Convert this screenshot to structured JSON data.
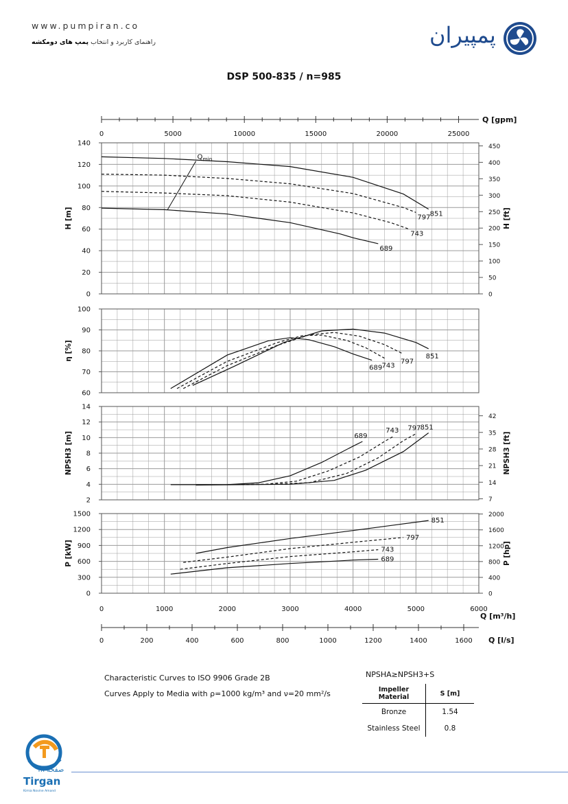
{
  "header": {
    "website": "www.pumpiran.co",
    "tagline_pre": "راهنمای کاربرد و انتخاب ",
    "tagline_bold": "پمپ های دومکشه",
    "brand": "پمپیران"
  },
  "title": "DSP 500-835 / n=985",
  "footer": {
    "page_label": "صفحه ۱۸",
    "company": "Tirgan",
    "company_sub": "Kimia Novine Amand"
  },
  "notes": {
    "line1": "Characteristic Curves to ISO 9906 Grade 2B",
    "line2": "Curves Apply to Media with  ρ=1000 kg/m³ and ν=20 mm²/s"
  },
  "npsh_rule": "NPSHA≥NPSH3+S",
  "impeller_table": {
    "headers": [
      "Impeller Material",
      "S [m]"
    ],
    "rows": [
      [
        "Bronze",
        "1.54"
      ],
      [
        "Stainless Steel",
        "0.8"
      ]
    ]
  },
  "colors": {
    "brand": "#1f4b8e",
    "grid": "#9a9a9a",
    "curve": "#111111",
    "footer_line": "#6b8fd0",
    "tirgan_orange": "#f39a1e",
    "tirgan_blue": "#1a6fb4"
  },
  "chart_data": {
    "type": "line",
    "title": "DSP 500-835 / n=985",
    "impeller_diameters": [
      "689",
      "743",
      "797",
      "851"
    ],
    "x_axes": {
      "gpm": {
        "label": "Q [gpm]",
        "ticks": [
          0,
          5000,
          10000,
          15000,
          20000,
          25000
        ]
      },
      "m3h": {
        "label": "Q [m³/h]",
        "ticks": [
          0,
          1000,
          2000,
          3000,
          4000,
          5000,
          6000
        ],
        "xlim": [
          0,
          6000
        ]
      },
      "ls": {
        "label": "Q [l/s]",
        "ticks": [
          0,
          200,
          400,
          600,
          800,
          1000,
          1200,
          1400,
          1600
        ]
      }
    },
    "panels": [
      {
        "id": "head",
        "ylabel": "H [m]",
        "ylim": [
          0,
          140
        ],
        "yticks": [
          0,
          20,
          40,
          60,
          80,
          100,
          120,
          140
        ],
        "y2label": "H [ft]",
        "y2ticks": [
          0,
          50,
          100,
          150,
          200,
          250,
          300,
          350,
          400,
          450
        ],
        "annotation": "Qmin",
        "qmin_line": [
          [
            1050,
            78
          ],
          [
            1500,
            123
          ]
        ],
        "series": [
          {
            "name": "689",
            "dash": false,
            "points": [
              [
                0,
                79.5
              ],
              [
                1000,
                78
              ],
              [
                2000,
                74
              ],
              [
                3000,
                66
              ],
              [
                3800,
                55.5
              ],
              [
                4000,
                52
              ],
              [
                4400,
                46.5
              ]
            ]
          },
          {
            "name": "743",
            "dash": true,
            "points": [
              [
                0,
                95
              ],
              [
                1000,
                93.5
              ],
              [
                2000,
                91
              ],
              [
                3000,
                85
              ],
              [
                4000,
                75
              ],
              [
                4600,
                66
              ],
              [
                4890,
                60
              ]
            ]
          },
          {
            "name": "797",
            "dash": true,
            "points": [
              [
                0,
                111
              ],
              [
                1000,
                110
              ],
              [
                2000,
                107
              ],
              [
                3000,
                102
              ],
              [
                4000,
                93
              ],
              [
                4800,
                80
              ],
              [
                5000,
                75.5
              ]
            ]
          },
          {
            "name": "851",
            "dash": false,
            "points": [
              [
                0,
                127
              ],
              [
                1000,
                125.5
              ],
              [
                2000,
                122.5
              ],
              [
                3000,
                118
              ],
              [
                4000,
                108
              ],
              [
                4800,
                92.5
              ],
              [
                5200,
                78.5
              ]
            ]
          }
        ]
      },
      {
        "id": "efficiency",
        "ylabel": "η [%]",
        "ylim": [
          60,
          100
        ],
        "yticks": [
          60,
          70,
          80,
          90,
          100
        ],
        "series": [
          {
            "name": "689",
            "dash": false,
            "points": [
              [
                1100,
                62
              ],
              [
                2000,
                78
              ],
              [
                2650,
                84.8
              ],
              [
                3000,
                86.3
              ],
              [
                3300,
                85.3
              ],
              [
                3700,
                82
              ],
              [
                4000,
                78.5
              ],
              [
                4300,
                75.5
              ]
            ]
          },
          {
            "name": "743",
            "dash": true,
            "points": [
              [
                1200,
                62
              ],
              [
                2000,
                75
              ],
              [
                2800,
                84
              ],
              [
                3200,
                87.3
              ],
              [
                3500,
                87.5
              ],
              [
                3900,
                85
              ],
              [
                4200,
                81.5
              ],
              [
                4500,
                76.5
              ]
            ]
          },
          {
            "name": "797",
            "dash": true,
            "points": [
              [
                1300,
                62
              ],
              [
                2000,
                73
              ],
              [
                2800,
                82.7
              ],
              [
                3300,
                87.6
              ],
              [
                3700,
                88.8
              ],
              [
                4100,
                87
              ],
              [
                4500,
                83
              ],
              [
                4800,
                78.5
              ]
            ]
          },
          {
            "name": "851",
            "dash": false,
            "points": [
              [
                1450,
                63.5
              ],
              [
                2100,
                72.5
              ],
              [
                2900,
                84
              ],
              [
                3500,
                89.5
              ],
              [
                4000,
                90.4
              ],
              [
                4500,
                88.5
              ],
              [
                5000,
                84
              ],
              [
                5200,
                81
              ]
            ]
          }
        ]
      },
      {
        "id": "npsh",
        "ylabel": "NPSH3 [m]",
        "ylim": [
          2,
          14
        ],
        "yticks": [
          2,
          4,
          6,
          8,
          10,
          12,
          14
        ],
        "y2label": "NPSH3 [ft]",
        "y2ticks": [
          7,
          14,
          21,
          28,
          35,
          42
        ],
        "series": [
          {
            "name": "689",
            "dash": false,
            "points": [
              [
                1100,
                3.95
              ],
              [
                2000,
                3.95
              ],
              [
                2500,
                4.2
              ],
              [
                3000,
                5.1
              ],
              [
                3500,
                6.8
              ],
              [
                4000,
                8.9
              ],
              [
                4150,
                9.5
              ]
            ]
          },
          {
            "name": "743",
            "dash": true,
            "points": [
              [
                2000,
                3.95
              ],
              [
                2600,
                4.0
              ],
              [
                3100,
                4.4
              ],
              [
                3600,
                5.7
              ],
              [
                4100,
                7.5
              ],
              [
                4500,
                9.5
              ],
              [
                4650,
                10.2
              ]
            ]
          },
          {
            "name": "797",
            "dash": true,
            "points": [
              [
                2000,
                3.95
              ],
              [
                2700,
                4.0
              ],
              [
                3300,
                4.2
              ],
              [
                3900,
                5.4
              ],
              [
                4400,
                7.4
              ],
              [
                4800,
                9.6
              ],
              [
                5000,
                10.5
              ]
            ]
          },
          {
            "name": "851",
            "dash": false,
            "points": [
              [
                1500,
                3.9
              ],
              [
                2200,
                3.95
              ],
              [
                3000,
                4.0
              ],
              [
                3700,
                4.5
              ],
              [
                4200,
                5.8
              ],
              [
                4800,
                8.2
              ],
              [
                5200,
                10.6
              ]
            ]
          }
        ]
      },
      {
        "id": "power",
        "ylabel": "P [kW]",
        "ylim": [
          0,
          1500
        ],
        "yticks": [
          0,
          300,
          600,
          900,
          1200,
          1500
        ],
        "y2label": "P [hp]",
        "y2ticks": [
          0,
          400,
          800,
          1200,
          1600,
          2000
        ],
        "series": [
          {
            "name": "689",
            "dash": false,
            "points": [
              [
                1100,
                360
              ],
              [
                2000,
                480
              ],
              [
                3000,
                560
              ],
              [
                3800,
                610
              ],
              [
                4000,
                625
              ],
              [
                4400,
                640
              ]
            ]
          },
          {
            "name": "743",
            "dash": true,
            "points": [
              [
                1250,
                450
              ],
              [
                2000,
                560
              ],
              [
                3000,
                690
              ],
              [
                4000,
                780
              ],
              [
                4400,
                820
              ]
            ]
          },
          {
            "name": "797",
            "dash": true,
            "points": [
              [
                1300,
                580
              ],
              [
                2000,
                680
              ],
              [
                3000,
                840
              ],
              [
                4000,
                960
              ],
              [
                4800,
                1050
              ]
            ]
          },
          {
            "name": "851",
            "dash": false,
            "points": [
              [
                1500,
                750
              ],
              [
                2000,
                860
              ],
              [
                3000,
                1030
              ],
              [
                4000,
                1180
              ],
              [
                4700,
                1290
              ],
              [
                5200,
                1370
              ]
            ]
          }
        ]
      }
    ]
  }
}
